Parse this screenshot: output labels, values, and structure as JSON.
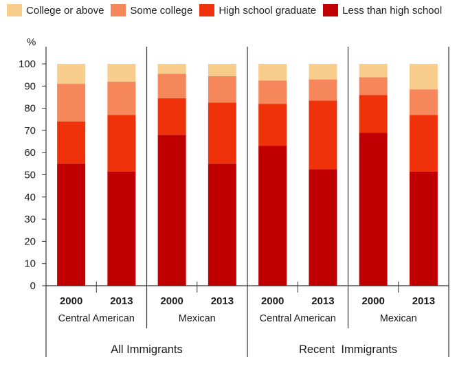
{
  "chart_data": {
    "type": "bar",
    "stacked": true,
    "ylabel": "%",
    "ylim": [
      0,
      100
    ],
    "yticks": [
      0,
      10,
      20,
      30,
      40,
      50,
      60,
      70,
      80,
      90,
      100
    ],
    "grid": false,
    "legend_position": "top",
    "series": [
      {
        "name": "Less than high school",
        "color": "#c00000",
        "values": [
          55,
          51.5,
          68,
          55,
          63,
          52.5,
          69,
          51.5
        ]
      },
      {
        "name": "High school graduate",
        "color": "#f0320a",
        "values": [
          19,
          25.5,
          16.5,
          27.5,
          19,
          31,
          17,
          25.5
        ]
      },
      {
        "name": "Some college",
        "color": "#f5875a",
        "values": [
          17,
          15,
          11,
          12,
          10.5,
          9.5,
          8,
          11.5
        ]
      },
      {
        "name": "College or above",
        "color": "#f8cc8a",
        "values": [
          9,
          8,
          4.5,
          5.5,
          7.5,
          7,
          6,
          11.5
        ]
      }
    ],
    "legend_order": [
      "College or above",
      "Some college",
      "High school graduate",
      "Less than high school"
    ],
    "categories": [
      "2000",
      "2013",
      "2000",
      "2013",
      "2000",
      "2013",
      "2000",
      "2013"
    ],
    "subgroups": [
      {
        "label": "Central American",
        "bars": [
          0,
          1
        ]
      },
      {
        "label": "Mexican",
        "bars": [
          2,
          3
        ]
      },
      {
        "label": "Central American",
        "bars": [
          4,
          5
        ]
      },
      {
        "label": "Mexican",
        "bars": [
          6,
          7
        ]
      }
    ],
    "groups": [
      {
        "label": "All Immigrants",
        "subgroups": [
          0,
          1
        ]
      },
      {
        "label": "Recent  Immigrants",
        "subgroups": [
          2,
          3
        ]
      }
    ]
  }
}
